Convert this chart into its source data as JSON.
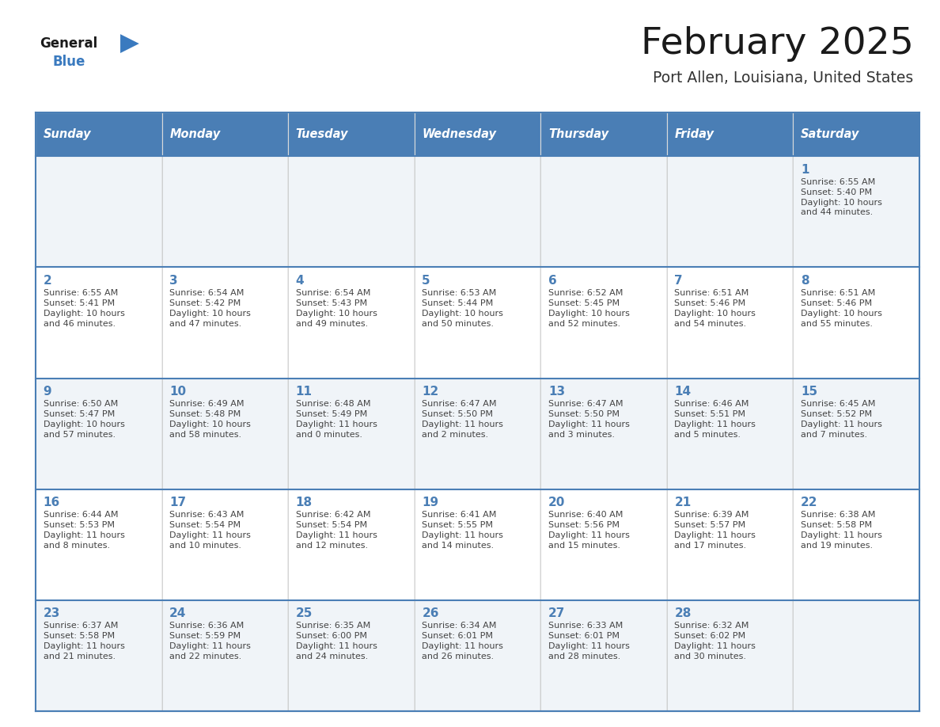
{
  "title": "February 2025",
  "subtitle": "Port Allen, Louisiana, United States",
  "header_bg_color": "#4a7eb5",
  "header_text_color": "#ffffff",
  "weekdays": [
    "Sunday",
    "Monday",
    "Tuesday",
    "Wednesday",
    "Thursday",
    "Friday",
    "Saturday"
  ],
  "row0_color": "#f0f4f8",
  "row1_color": "#ffffff",
  "border_color": "#4a7eb5",
  "day_number_color": "#4a7eb5",
  "cell_text_color": "#444444",
  "title_color": "#1a1a1a",
  "subtitle_color": "#333333",
  "logo_general_color": "#1a1a1a",
  "logo_blue_color": "#3a7abf",
  "calendar": [
    [
      null,
      null,
      null,
      null,
      null,
      null,
      {
        "day": 1,
        "sunrise": "6:55 AM",
        "sunset": "5:40 PM",
        "daylight": "10 hours",
        "daylight2": "and 44 minutes."
      }
    ],
    [
      {
        "day": 2,
        "sunrise": "6:55 AM",
        "sunset": "5:41 PM",
        "daylight": "10 hours",
        "daylight2": "and 46 minutes."
      },
      {
        "day": 3,
        "sunrise": "6:54 AM",
        "sunset": "5:42 PM",
        "daylight": "10 hours",
        "daylight2": "and 47 minutes."
      },
      {
        "day": 4,
        "sunrise": "6:54 AM",
        "sunset": "5:43 PM",
        "daylight": "10 hours",
        "daylight2": "and 49 minutes."
      },
      {
        "day": 5,
        "sunrise": "6:53 AM",
        "sunset": "5:44 PM",
        "daylight": "10 hours",
        "daylight2": "and 50 minutes."
      },
      {
        "day": 6,
        "sunrise": "6:52 AM",
        "sunset": "5:45 PM",
        "daylight": "10 hours",
        "daylight2": "and 52 minutes."
      },
      {
        "day": 7,
        "sunrise": "6:51 AM",
        "sunset": "5:46 PM",
        "daylight": "10 hours",
        "daylight2": "and 54 minutes."
      },
      {
        "day": 8,
        "sunrise": "6:51 AM",
        "sunset": "5:46 PM",
        "daylight": "10 hours",
        "daylight2": "and 55 minutes."
      }
    ],
    [
      {
        "day": 9,
        "sunrise": "6:50 AM",
        "sunset": "5:47 PM",
        "daylight": "10 hours",
        "daylight2": "and 57 minutes."
      },
      {
        "day": 10,
        "sunrise": "6:49 AM",
        "sunset": "5:48 PM",
        "daylight": "10 hours",
        "daylight2": "and 58 minutes."
      },
      {
        "day": 11,
        "sunrise": "6:48 AM",
        "sunset": "5:49 PM",
        "daylight": "11 hours",
        "daylight2": "and 0 minutes."
      },
      {
        "day": 12,
        "sunrise": "6:47 AM",
        "sunset": "5:50 PM",
        "daylight": "11 hours",
        "daylight2": "and 2 minutes."
      },
      {
        "day": 13,
        "sunrise": "6:47 AM",
        "sunset": "5:50 PM",
        "daylight": "11 hours",
        "daylight2": "and 3 minutes."
      },
      {
        "day": 14,
        "sunrise": "6:46 AM",
        "sunset": "5:51 PM",
        "daylight": "11 hours",
        "daylight2": "and 5 minutes."
      },
      {
        "day": 15,
        "sunrise": "6:45 AM",
        "sunset": "5:52 PM",
        "daylight": "11 hours",
        "daylight2": "and 7 minutes."
      }
    ],
    [
      {
        "day": 16,
        "sunrise": "6:44 AM",
        "sunset": "5:53 PM",
        "daylight": "11 hours",
        "daylight2": "and 8 minutes."
      },
      {
        "day": 17,
        "sunrise": "6:43 AM",
        "sunset": "5:54 PM",
        "daylight": "11 hours",
        "daylight2": "and 10 minutes."
      },
      {
        "day": 18,
        "sunrise": "6:42 AM",
        "sunset": "5:54 PM",
        "daylight": "11 hours",
        "daylight2": "and 12 minutes."
      },
      {
        "day": 19,
        "sunrise": "6:41 AM",
        "sunset": "5:55 PM",
        "daylight": "11 hours",
        "daylight2": "and 14 minutes."
      },
      {
        "day": 20,
        "sunrise": "6:40 AM",
        "sunset": "5:56 PM",
        "daylight": "11 hours",
        "daylight2": "and 15 minutes."
      },
      {
        "day": 21,
        "sunrise": "6:39 AM",
        "sunset": "5:57 PM",
        "daylight": "11 hours",
        "daylight2": "and 17 minutes."
      },
      {
        "day": 22,
        "sunrise": "6:38 AM",
        "sunset": "5:58 PM",
        "daylight": "11 hours",
        "daylight2": "and 19 minutes."
      }
    ],
    [
      {
        "day": 23,
        "sunrise": "6:37 AM",
        "sunset": "5:58 PM",
        "daylight": "11 hours",
        "daylight2": "and 21 minutes."
      },
      {
        "day": 24,
        "sunrise": "6:36 AM",
        "sunset": "5:59 PM",
        "daylight": "11 hours",
        "daylight2": "and 22 minutes."
      },
      {
        "day": 25,
        "sunrise": "6:35 AM",
        "sunset": "6:00 PM",
        "daylight": "11 hours",
        "daylight2": "and 24 minutes."
      },
      {
        "day": 26,
        "sunrise": "6:34 AM",
        "sunset": "6:01 PM",
        "daylight": "11 hours",
        "daylight2": "and 26 minutes."
      },
      {
        "day": 27,
        "sunrise": "6:33 AM",
        "sunset": "6:01 PM",
        "daylight": "11 hours",
        "daylight2": "and 28 minutes."
      },
      {
        "day": 28,
        "sunrise": "6:32 AM",
        "sunset": "6:02 PM",
        "daylight": "11 hours",
        "daylight2": "and 30 minutes."
      },
      null
    ]
  ],
  "figwidth": 11.88,
  "figheight": 9.18,
  "dpi": 100
}
